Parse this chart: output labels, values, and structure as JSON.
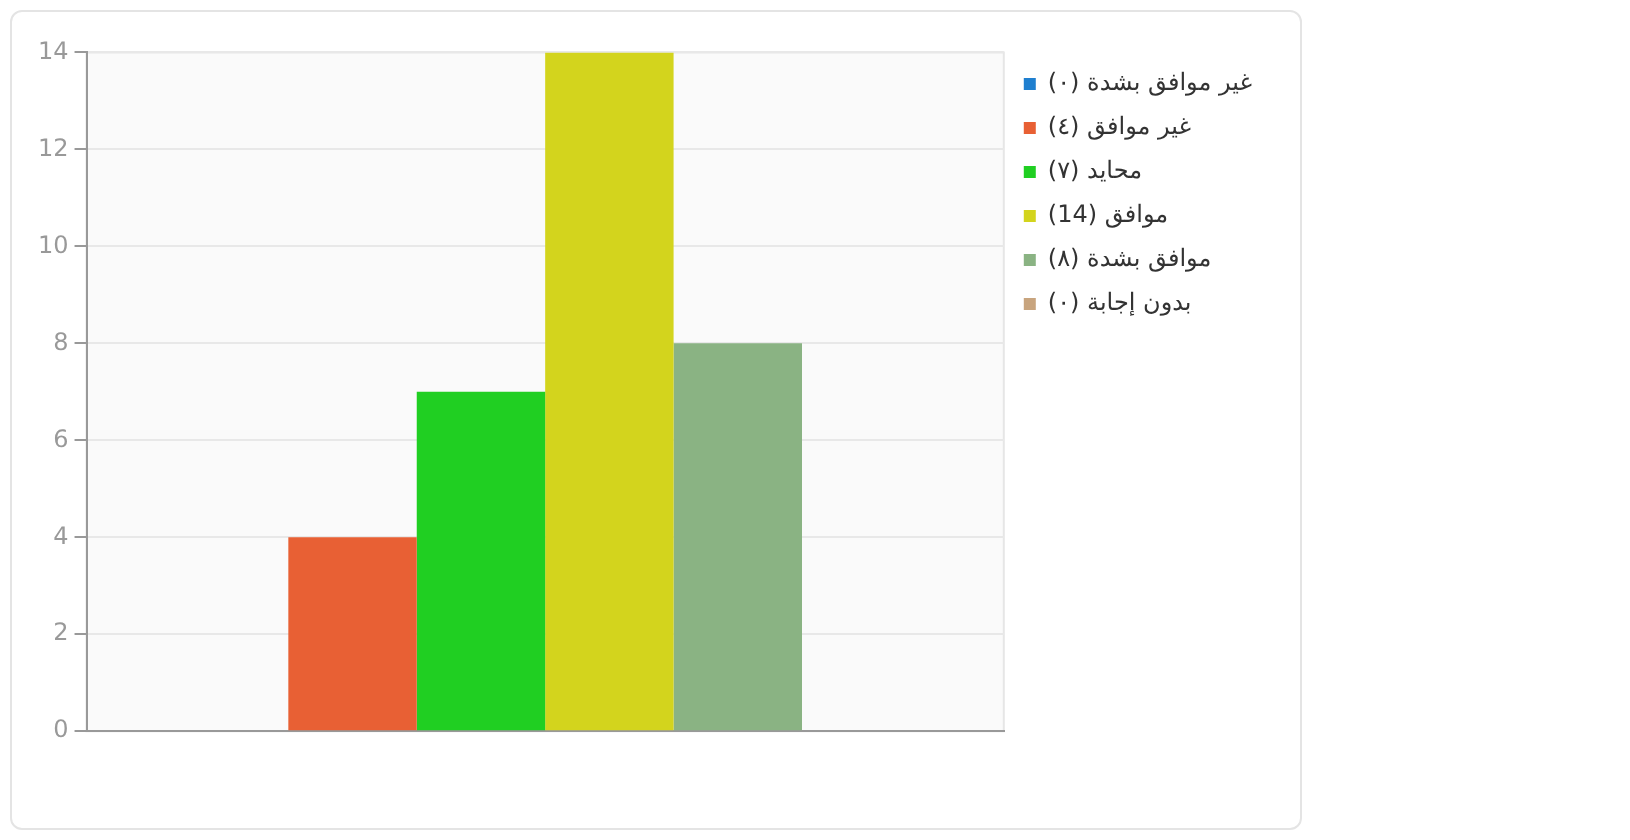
{
  "chart_data": {
    "type": "bar",
    "categories": [
      null
    ],
    "series": [
      {
        "name": "غير موافق بشدة (٠)",
        "color": "#1f7fcf",
        "values": [
          0
        ]
      },
      {
        "name": "غير موافق (٤)",
        "color": "#e86034",
        "values": [
          4
        ]
      },
      {
        "name": "محايد (٧)",
        "color": "#20cf22",
        "values": [
          7
        ]
      },
      {
        "name": "موافق (14)",
        "color": "#d3d41d",
        "values": [
          14
        ]
      },
      {
        "name": "موافق بشدة (٨)",
        "color": "#8ab383",
        "values": [
          8
        ]
      },
      {
        "name": "بدون إجابة (٠)",
        "color": "#c8a47e",
        "values": [
          0
        ]
      }
    ],
    "ylim": [
      0,
      14
    ],
    "yticks": [
      0,
      2,
      4,
      6,
      8,
      10,
      12,
      14
    ],
    "grid": "y",
    "legend": "top right"
  }
}
